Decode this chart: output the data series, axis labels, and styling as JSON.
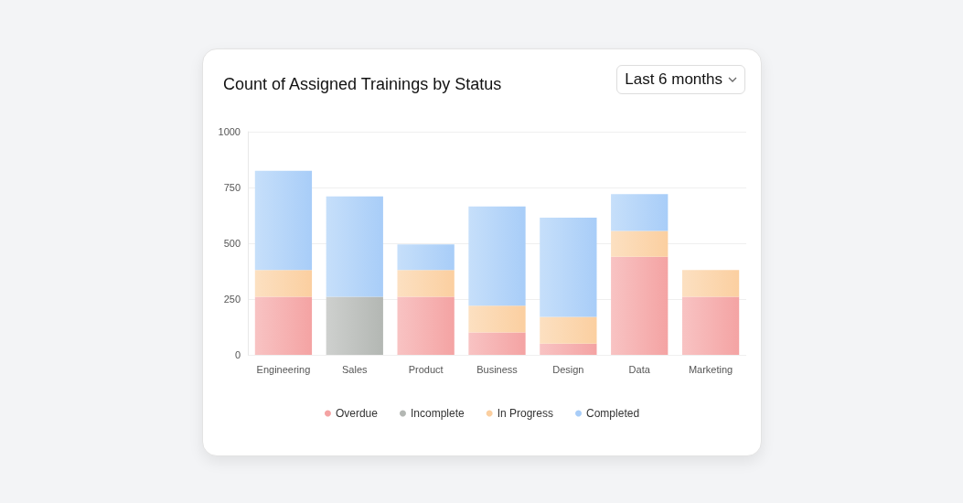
{
  "chart_data": {
    "type": "bar",
    "stacked": true,
    "title": "Count of Assigned Trainings by Status",
    "annotations": [
      "Last 6 months"
    ],
    "categories": [
      "Engineering",
      "Sales",
      "Product",
      "Business",
      "Design",
      "Data",
      "Marketing"
    ],
    "series": [
      {
        "name": "Overdue",
        "color": "#f4a3a3",
        "values": [
          260,
          null,
          260,
          100,
          50,
          440,
          260
        ]
      },
      {
        "name": "Incomplete",
        "color": "#b3b7b3",
        "values": [
          null,
          260,
          null,
          null,
          null,
          null,
          null
        ]
      },
      {
        "name": "In Progress",
        "color": "#fbcfa0",
        "values": [
          120,
          null,
          120,
          120,
          120,
          115,
          120
        ]
      },
      {
        "name": "Completed",
        "color": "#a8cdf8",
        "values": [
          445,
          450,
          115,
          445,
          445,
          165,
          null
        ]
      }
    ],
    "ylim": [
      0,
      1000
    ],
    "yticks": [
      0,
      250,
      500,
      750,
      1000
    ],
    "grid": "y",
    "legend": "bottom"
  }
}
